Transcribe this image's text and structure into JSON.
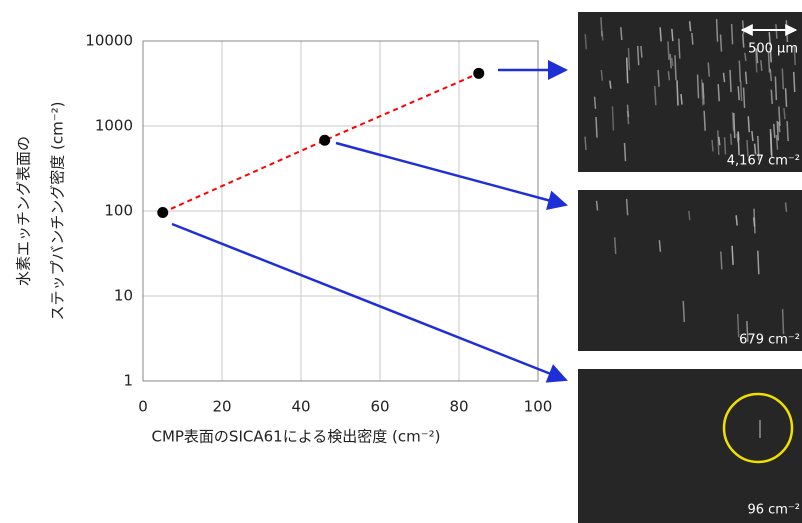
{
  "chart_data": {
    "type": "scatter",
    "xlabel": "CMP表面のSICA61による検出密度 (cm⁻²)",
    "ylabel": [
      "水素エッチング表面の",
      "ステップバンチング密度 (cm⁻²)"
    ],
    "x": [
      5,
      46,
      85
    ],
    "values": [
      96,
      679,
      4167
    ],
    "color": "#000000",
    "line_color": "#ff0000",
    "xlim": [
      0,
      100
    ],
    "xticks": [
      0,
      20,
      40,
      60,
      80,
      100
    ],
    "ylim": [
      1,
      10000
    ],
    "yticks": [
      1,
      10,
      100,
      1000,
      10000
    ],
    "log_y": true,
    "grid": true
  },
  "panels": {
    "scale_bar": "500 µm",
    "labels": [
      "4,167 cm⁻²",
      "679 cm⁻²",
      "96 cm⁻²"
    ]
  }
}
